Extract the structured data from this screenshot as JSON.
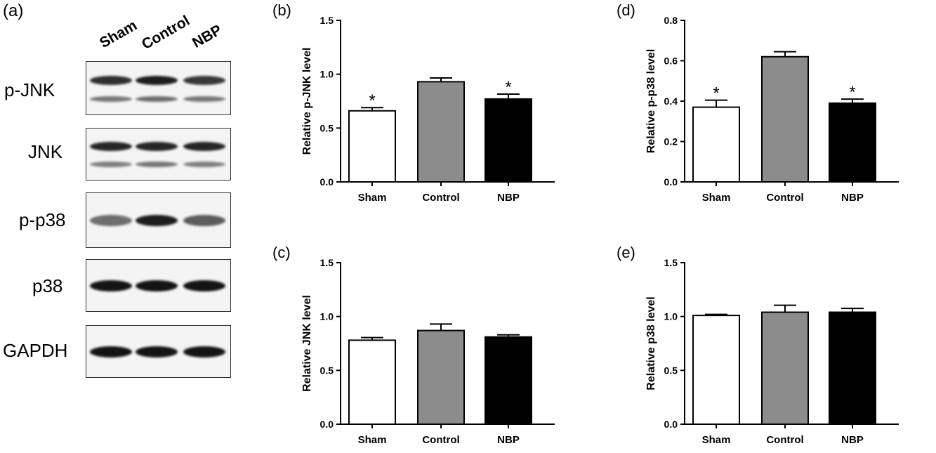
{
  "blot": {
    "panel_letter": "(a)",
    "lanes": [
      "Sham",
      "Control",
      "NBP"
    ],
    "rows": [
      {
        "label": "p-JNK",
        "bands": [
          [
            0.85,
            0.95,
            0.8
          ],
          [
            0.45,
            0.5,
            0.45
          ]
        ]
      },
      {
        "label": "JNK",
        "bands": [
          [
            0.9,
            0.9,
            0.9
          ],
          [
            0.4,
            0.45,
            0.4
          ]
        ]
      },
      {
        "label": "p-p38",
        "bands": [
          [
            0.5,
            0.95,
            0.6
          ]
        ]
      },
      {
        "label": "p38",
        "bands": [
          [
            1.0,
            1.0,
            1.0
          ]
        ]
      },
      {
        "label": "GAPDH",
        "bands": [
          [
            1.0,
            1.0,
            1.0
          ]
        ]
      }
    ]
  },
  "chart_data": [
    {
      "panel": "(b)",
      "type": "bar",
      "categories": [
        "Sham",
        "Control",
        "NBP"
      ],
      "values": [
        0.66,
        0.93,
        0.77
      ],
      "errors": [
        0.03,
        0.035,
        0.045
      ],
      "significance": [
        "*",
        "",
        "*"
      ],
      "colors": [
        "#ffffff",
        "#8c8c8c",
        "#000000"
      ],
      "ylabel": "Relative p-JNK level",
      "ylim": [
        0,
        1.5
      ],
      "yticks": [
        "0.0",
        "0.5",
        "1.0",
        "1.5"
      ]
    },
    {
      "panel": "(c)",
      "type": "bar",
      "categories": [
        "Sham",
        "Control",
        "NBP"
      ],
      "values": [
        0.78,
        0.87,
        0.81
      ],
      "errors": [
        0.025,
        0.06,
        0.02
      ],
      "significance": [
        "",
        "",
        ""
      ],
      "colors": [
        "#ffffff",
        "#8c8c8c",
        "#000000"
      ],
      "ylabel": "Relative JNK level",
      "ylim": [
        0,
        1.5
      ],
      "yticks": [
        "0.0",
        "0.5",
        "1.0",
        "1.5"
      ]
    },
    {
      "panel": "(d)",
      "type": "bar",
      "categories": [
        "Sham",
        "Control",
        "NBP"
      ],
      "values": [
        0.37,
        0.62,
        0.39
      ],
      "errors": [
        0.035,
        0.025,
        0.02
      ],
      "significance": [
        "*",
        "",
        "*"
      ],
      "colors": [
        "#ffffff",
        "#8c8c8c",
        "#000000"
      ],
      "ylabel": "Relative p-p38 level",
      "ylim": [
        0,
        0.8
      ],
      "yticks": [
        "0.0",
        "0.2",
        "0.4",
        "0.6",
        "0.8"
      ]
    },
    {
      "panel": "(e)",
      "type": "bar",
      "categories": [
        "Sham",
        "Control",
        "NBP"
      ],
      "values": [
        1.01,
        1.04,
        1.04
      ],
      "errors": [
        0.01,
        0.065,
        0.035
      ],
      "significance": [
        "",
        "",
        ""
      ],
      "colors": [
        "#ffffff",
        "#8c8c8c",
        "#000000"
      ],
      "ylabel": "Relative p38 level",
      "ylim": [
        0,
        1.5
      ],
      "yticks": [
        "0.0",
        "0.5",
        "1.0",
        "1.5"
      ]
    }
  ]
}
